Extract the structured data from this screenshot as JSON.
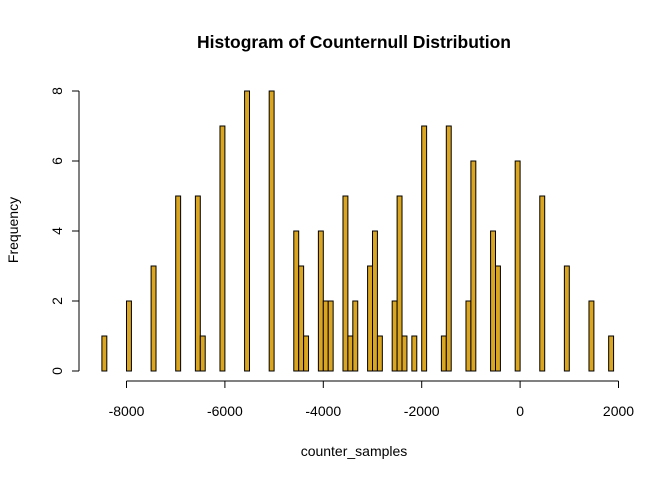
{
  "chart_data": {
    "type": "bar",
    "title": "Histogram of Counternull Distribution",
    "xlabel": "counter_samples",
    "ylabel": "Frequency",
    "xlim": [
      -8600,
      2000
    ],
    "ylim": [
      0,
      8
    ],
    "bin_width": 100,
    "bar_color": "#DAA520",
    "border_color": "#000000",
    "x_ticks": [
      -8000,
      -6000,
      -4000,
      -2000,
      0,
      2000
    ],
    "x_tick_labels": [
      "-8000",
      "-6000",
      "-4000",
      "-2000",
      "0",
      "2000"
    ],
    "y_ticks": [
      0,
      2,
      4,
      6,
      8
    ],
    "y_tick_labels": [
      "0",
      "2",
      "4",
      "6",
      "8"
    ],
    "grid": false,
    "bins": [
      {
        "x0": -8500,
        "x1": -8400,
        "count": 1
      },
      {
        "x0": -8000,
        "x1": -7900,
        "count": 2
      },
      {
        "x0": -7500,
        "x1": -7400,
        "count": 3
      },
      {
        "x0": -7000,
        "x1": -6900,
        "count": 5
      },
      {
        "x0": -6600,
        "x1": -6500,
        "count": 5
      },
      {
        "x0": -6500,
        "x1": -6400,
        "count": 1
      },
      {
        "x0": -6100,
        "x1": -6000,
        "count": 7
      },
      {
        "x0": -5600,
        "x1": -5500,
        "count": 8
      },
      {
        "x0": -5100,
        "x1": -5000,
        "count": 8
      },
      {
        "x0": -4600,
        "x1": -4500,
        "count": 4
      },
      {
        "x0": -4500,
        "x1": -4400,
        "count": 3
      },
      {
        "x0": -4400,
        "x1": -4300,
        "count": 1
      },
      {
        "x0": -4100,
        "x1": -4000,
        "count": 4
      },
      {
        "x0": -4000,
        "x1": -3900,
        "count": 2
      },
      {
        "x0": -3900,
        "x1": -3800,
        "count": 2
      },
      {
        "x0": -3600,
        "x1": -3500,
        "count": 5
      },
      {
        "x0": -3500,
        "x1": -3400,
        "count": 1
      },
      {
        "x0": -3400,
        "x1": -3300,
        "count": 2
      },
      {
        "x0": -3100,
        "x1": -3000,
        "count": 3
      },
      {
        "x0": -3000,
        "x1": -2900,
        "count": 4
      },
      {
        "x0": -2900,
        "x1": -2800,
        "count": 1
      },
      {
        "x0": -2600,
        "x1": -2500,
        "count": 2
      },
      {
        "x0": -2500,
        "x1": -2400,
        "count": 5
      },
      {
        "x0": -2400,
        "x1": -2300,
        "count": 1
      },
      {
        "x0": -2200,
        "x1": -2100,
        "count": 1
      },
      {
        "x0": -2000,
        "x1": -1900,
        "count": 7
      },
      {
        "x0": -1600,
        "x1": -1500,
        "count": 1
      },
      {
        "x0": -1500,
        "x1": -1400,
        "count": 7
      },
      {
        "x0": -1100,
        "x1": -1000,
        "count": 2
      },
      {
        "x0": -1000,
        "x1": -900,
        "count": 6
      },
      {
        "x0": -600,
        "x1": -500,
        "count": 4
      },
      {
        "x0": -500,
        "x1": -400,
        "count": 3
      },
      {
        "x0": -100,
        "x1": 0,
        "count": 6
      },
      {
        "x0": 400,
        "x1": 500,
        "count": 5
      },
      {
        "x0": 900,
        "x1": 1000,
        "count": 3
      },
      {
        "x0": 1400,
        "x1": 1500,
        "count": 2
      },
      {
        "x0": 1800,
        "x1": 1900,
        "count": 1
      }
    ]
  }
}
